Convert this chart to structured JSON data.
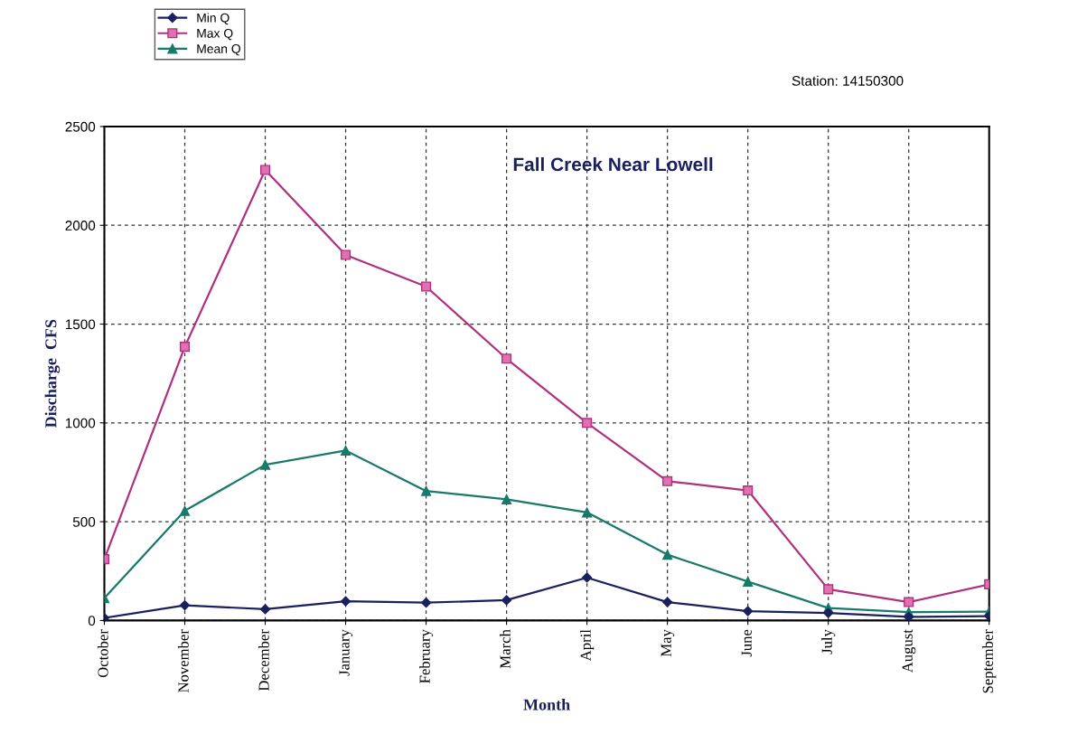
{
  "chart_data": {
    "type": "line",
    "title": "Fall Creek Near Lowell",
    "xlabel": "Month",
    "ylabel": "Discharge  CFS",
    "annotations": [
      "Station: 14150300"
    ],
    "categories": [
      "October",
      "November",
      "December",
      "January",
      "February",
      "March",
      "April",
      "May",
      "June",
      "July",
      "August",
      "September"
    ],
    "series": [
      {
        "name": "Min Q",
        "color": "#1a1f5e",
        "marker": "diamond",
        "values": [
          13,
          77,
          57,
          97,
          90,
          103,
          217,
          93,
          47,
          38,
          18,
          22
        ]
      },
      {
        "name": "Max Q",
        "color": "#b0307f",
        "marker": "square",
        "values": [
          310,
          1385,
          2280,
          1850,
          1690,
          1325,
          1000,
          705,
          658,
          158,
          93,
          183
        ]
      },
      {
        "name": "Mean Q",
        "color": "#1a7a6a",
        "marker": "triangle",
        "values": [
          113,
          555,
          788,
          860,
          655,
          613,
          547,
          333,
          197,
          63,
          42,
          45
        ]
      }
    ],
    "ylim": [
      0,
      2500
    ],
    "yticks": [
      0,
      500,
      1000,
      1500,
      2000,
      2500
    ],
    "grid": true,
    "legend": "top left",
    "line_style": "solid"
  }
}
